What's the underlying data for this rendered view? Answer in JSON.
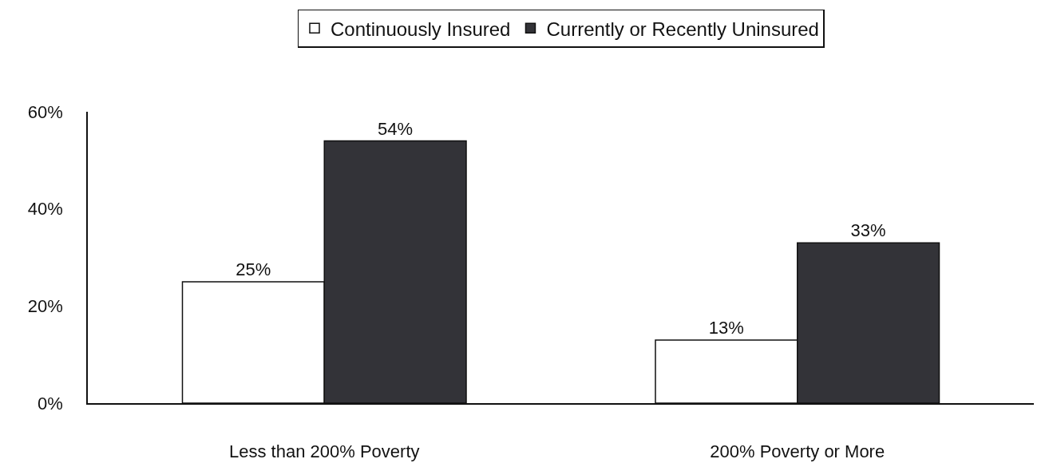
{
  "chart_data": {
    "type": "bar",
    "categories": [
      "Less than 200% Poverty",
      "200% Poverty or More"
    ],
    "series": [
      {
        "name": "Continuously Insured",
        "color": "#ffffff",
        "values": [
          25,
          13
        ],
        "value_labels": [
          "25%",
          "13%"
        ]
      },
      {
        "name": "Currently or Recently Uninsured",
        "color": "#333338",
        "values": [
          54,
          33
        ],
        "value_labels": [
          "54%",
          "33%"
        ]
      }
    ],
    "ylim": [
      0,
      60
    ],
    "yticks": [
      {
        "value": 0,
        "label": "0%"
      },
      {
        "value": 20,
        "label": "20%"
      },
      {
        "value": 40,
        "label": "40%"
      },
      {
        "value": 60,
        "label": "60%"
      }
    ],
    "grid": false,
    "legend": "top"
  }
}
